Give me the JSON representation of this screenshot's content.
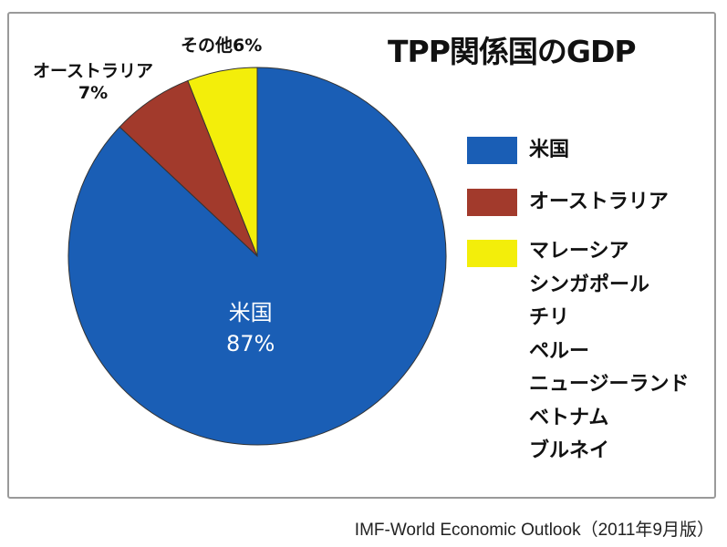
{
  "chart_data": {
    "type": "pie",
    "title": "TPP関係国のGDP",
    "start": "top",
    "direction": "counterclockwise",
    "slices": [
      {
        "name": "その他",
        "label": "その他6%",
        "value": 6,
        "color": "#f3ee0a"
      },
      {
        "name": "オーストラリア",
        "label_name": "オーストラリア",
        "label_pct": "7%",
        "value": 7,
        "color": "#a23a2c"
      },
      {
        "name": "米国",
        "label_name": "米国",
        "label_pct": "87%",
        "value": 87,
        "color": "#1a5eb5"
      }
    ],
    "legend": {
      "placement": "right",
      "entries": [
        {
          "lines": [
            "米国"
          ],
          "color": "#1a5eb5"
        },
        {
          "lines": [
            "オーストラリア"
          ],
          "color": "#a23a2c"
        },
        {
          "lines": [
            "マレーシア",
            "シンガポール",
            "チリ",
            "ペルー",
            "ニュージーランド",
            "ベトナム",
            "ブルネイ"
          ],
          "color": "#f3ee0a"
        }
      ]
    },
    "source": "IMF-World Economic Outlook（2011年9月版）"
  }
}
